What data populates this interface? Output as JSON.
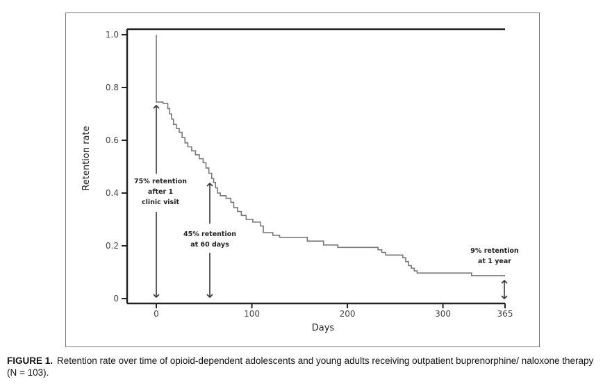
{
  "chart_data": {
    "type": "line",
    "style": "step (Kaplan-Meier)",
    "xlabel": "Days",
    "ylabel": "Retention rate",
    "xlim": [
      0,
      365
    ],
    "ylim": [
      0,
      1.0
    ],
    "x_ticks": [
      "0",
      "100",
      "200",
      "300",
      "365"
    ],
    "x_tick_values": [
      0,
      100,
      200,
      300,
      365
    ],
    "y_ticks": [
      "0",
      "0.2",
      "0.4",
      "0.6",
      "0.8",
      "1.0"
    ],
    "y_tick_values": [
      0,
      0.2,
      0.4,
      0.6,
      0.8,
      1.0
    ],
    "series": [
      {
        "name": "Retention",
        "color": "#777777",
        "points": [
          [
            0,
            1.0
          ],
          [
            0,
            0.745
          ],
          [
            7,
            0.74
          ],
          [
            12,
            0.72
          ],
          [
            14,
            0.7
          ],
          [
            16,
            0.68
          ],
          [
            18,
            0.66
          ],
          [
            21,
            0.645
          ],
          [
            24,
            0.63
          ],
          [
            27,
            0.61
          ],
          [
            30,
            0.59
          ],
          [
            33,
            0.575
          ],
          [
            37,
            0.56
          ],
          [
            41,
            0.545
          ],
          [
            45,
            0.53
          ],
          [
            49,
            0.515
          ],
          [
            52,
            0.495
          ],
          [
            55,
            0.475
          ],
          [
            58,
            0.455
          ],
          [
            60,
            0.44
          ],
          [
            62,
            0.42
          ],
          [
            64,
            0.4
          ],
          [
            67,
            0.39
          ],
          [
            73,
            0.38
          ],
          [
            78,
            0.365
          ],
          [
            81,
            0.345
          ],
          [
            85,
            0.33
          ],
          [
            89,
            0.315
          ],
          [
            94,
            0.3
          ],
          [
            101,
            0.29
          ],
          [
            109,
            0.275
          ],
          [
            112,
            0.25
          ],
          [
            122,
            0.24
          ],
          [
            129,
            0.232
          ],
          [
            158,
            0.218
          ],
          [
            175,
            0.203
          ],
          [
            190,
            0.194
          ],
          [
            232,
            0.185
          ],
          [
            236,
            0.175
          ],
          [
            240,
            0.165
          ],
          [
            258,
            0.155
          ],
          [
            261,
            0.14
          ],
          [
            264,
            0.125
          ],
          [
            267,
            0.115
          ],
          [
            270,
            0.105
          ],
          [
            273,
            0.097
          ],
          [
            330,
            0.087
          ],
          [
            365,
            0.087
          ]
        ]
      }
    ],
    "annotations": [
      {
        "lines": [
          "75% retention",
          "after 1",
          "clinic visit"
        ],
        "day": 0,
        "value": 0.75
      },
      {
        "lines": [
          "45% retention",
          "at 60 days"
        ],
        "day": 55,
        "value": 0.45
      },
      {
        "lines": [
          "9% retention",
          "at 1 year"
        ],
        "day": 365,
        "value": 0.09
      }
    ],
    "grid": false
  },
  "caption": {
    "label": "FIGURE 1.",
    "text": "Retention rate over time of opioid-dependent adolescents and young adults receiving outpatient buprenorphine/ naloxone therapy (N = 103)."
  }
}
